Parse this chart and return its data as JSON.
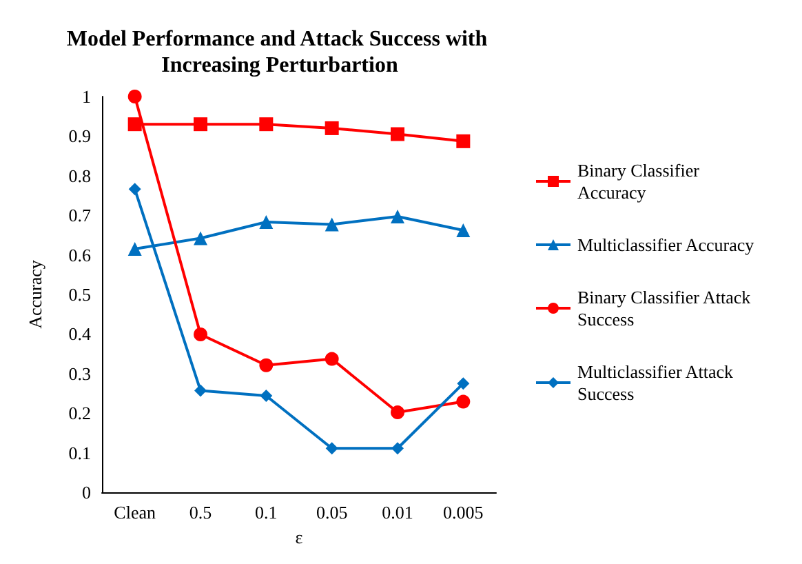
{
  "chart_data": {
    "type": "line",
    "title": "Model Performance and Attack Success with Increasing Perturbartion",
    "xlabel": "ε",
    "ylabel": "Accuracy",
    "categories": [
      "Clean",
      "0.5",
      "0.1",
      "0.05",
      "0.01",
      "0.005"
    ],
    "ylim": [
      0,
      1
    ],
    "yticks": [
      0,
      0.1,
      0.2,
      0.3,
      0.4,
      0.5,
      0.6,
      0.7,
      0.8,
      0.9,
      1
    ],
    "grid": false,
    "legend": "right",
    "line_style": "solid",
    "series": [
      {
        "name": "Binary Classifier Accuracy",
        "color": "#ff0000",
        "marker": "square",
        "values": [
          0.93,
          0.93,
          0.93,
          0.92,
          0.905,
          0.887
        ]
      },
      {
        "name": "Multiclassifier Accuracy",
        "color": "#0070c0",
        "marker": "triangle",
        "values": [
          0.615,
          0.642,
          0.683,
          0.677,
          0.697,
          0.662
        ]
      },
      {
        "name": "Binary Classifier Attack Success",
        "color": "#ff0000",
        "marker": "circle",
        "values": [
          1.0,
          0.399,
          0.321,
          0.337,
          0.202,
          0.229
        ]
      },
      {
        "name": "Multiclassifier Attack Success",
        "color": "#0070c0",
        "marker": "diamond",
        "values": [
          0.766,
          0.257,
          0.244,
          0.111,
          0.111,
          0.275
        ]
      }
    ]
  }
}
